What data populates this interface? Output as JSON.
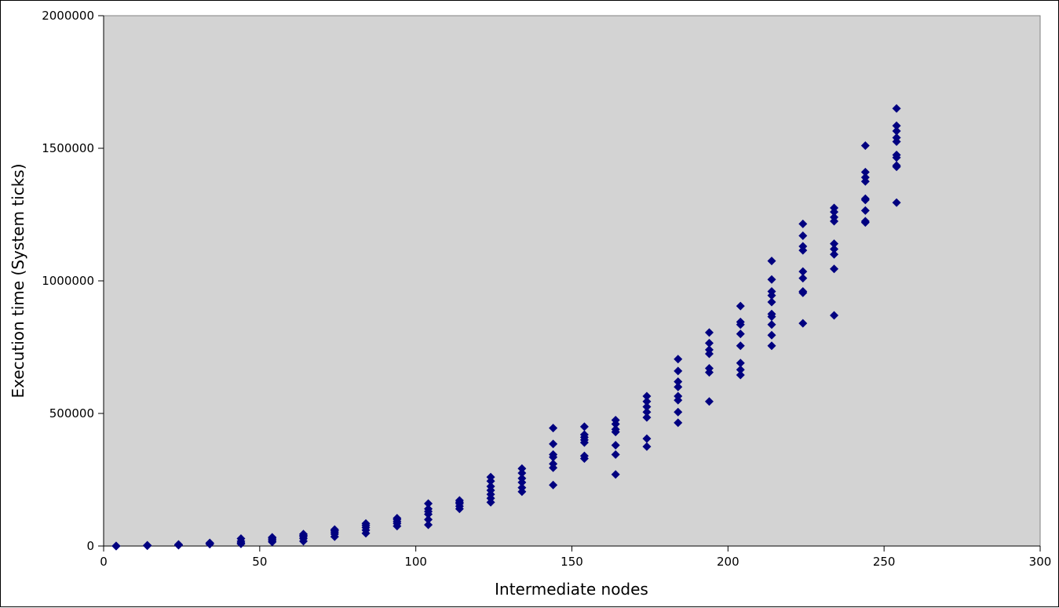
{
  "chart_data": {
    "type": "scatter",
    "title": "",
    "xlabel": "Intermediate nodes",
    "ylabel": "Execution time (System ticks)",
    "xlim": [
      0,
      300
    ],
    "ylim": [
      0,
      2000000
    ],
    "x_ticks": [
      0,
      50,
      100,
      150,
      200,
      250,
      300
    ],
    "y_ticks": [
      0,
      500000,
      1000000,
      1500000,
      2000000
    ],
    "x_tick_labels": [
      "0",
      "50",
      "100",
      "150",
      "200",
      "250",
      "300"
    ],
    "y_tick_labels": [
      "0",
      "500000",
      "1000000",
      "1500000",
      "2000000"
    ],
    "grid": false,
    "legend": "none",
    "colors": {
      "marker": "#000080",
      "plot_background": "#d3d3d3",
      "axes": "#808080"
    },
    "series": [
      {
        "marker": "diamond",
        "points": [
          [
            4,
            0
          ],
          [
            4,
            0
          ],
          [
            4,
            0
          ],
          [
            4,
            0
          ],
          [
            4,
            0
          ],
          [
            14,
            1000
          ],
          [
            14,
            2000
          ],
          [
            14,
            3000
          ],
          [
            14,
            2000
          ],
          [
            24,
            3000
          ],
          [
            24,
            5000
          ],
          [
            24,
            6000
          ],
          [
            24,
            4000
          ],
          [
            34,
            7000
          ],
          [
            34,
            9000
          ],
          [
            34,
            12000
          ],
          [
            34,
            10000
          ],
          [
            44,
            8000
          ],
          [
            44,
            12000
          ],
          [
            44,
            18000
          ],
          [
            44,
            28000
          ],
          [
            54,
            15000
          ],
          [
            54,
            20000
          ],
          [
            54,
            25000
          ],
          [
            54,
            30000
          ],
          [
            54,
            33000
          ],
          [
            64,
            18000
          ],
          [
            64,
            28000
          ],
          [
            64,
            35000
          ],
          [
            64,
            40000
          ],
          [
            64,
            45000
          ],
          [
            74,
            35000
          ],
          [
            74,
            45000
          ],
          [
            74,
            52000
          ],
          [
            74,
            58000
          ],
          [
            74,
            62000
          ],
          [
            84,
            48000
          ],
          [
            84,
            60000
          ],
          [
            84,
            70000
          ],
          [
            84,
            78000
          ],
          [
            84,
            85000
          ],
          [
            94,
            75000
          ],
          [
            94,
            85000
          ],
          [
            94,
            92000
          ],
          [
            94,
            100000
          ],
          [
            94,
            105000
          ],
          [
            104,
            80000
          ],
          [
            104,
            100000
          ],
          [
            104,
            120000
          ],
          [
            104,
            130000
          ],
          [
            104,
            140000
          ],
          [
            104,
            160000
          ],
          [
            114,
            140000
          ],
          [
            114,
            150000
          ],
          [
            114,
            160000
          ],
          [
            114,
            165000
          ],
          [
            114,
            172000
          ],
          [
            124,
            165000
          ],
          [
            124,
            180000
          ],
          [
            124,
            195000
          ],
          [
            124,
            210000
          ],
          [
            124,
            225000
          ],
          [
            124,
            245000
          ],
          [
            124,
            260000
          ],
          [
            134,
            205000
          ],
          [
            134,
            220000
          ],
          [
            134,
            240000
          ],
          [
            134,
            255000
          ],
          [
            134,
            275000
          ],
          [
            134,
            292000
          ],
          [
            144,
            230000
          ],
          [
            144,
            295000
          ],
          [
            144,
            310000
          ],
          [
            144,
            335000
          ],
          [
            144,
            345000
          ],
          [
            144,
            385000
          ],
          [
            144,
            445000
          ],
          [
            154,
            330000
          ],
          [
            154,
            340000
          ],
          [
            154,
            390000
          ],
          [
            154,
            400000
          ],
          [
            154,
            410000
          ],
          [
            154,
            420000
          ],
          [
            154,
            450000
          ],
          [
            164,
            270000
          ],
          [
            164,
            345000
          ],
          [
            164,
            380000
          ],
          [
            164,
            430000
          ],
          [
            164,
            440000
          ],
          [
            164,
            460000
          ],
          [
            164,
            475000
          ],
          [
            174,
            375000
          ],
          [
            174,
            405000
          ],
          [
            174,
            485000
          ],
          [
            174,
            505000
          ],
          [
            174,
            525000
          ],
          [
            174,
            545000
          ],
          [
            174,
            565000
          ],
          [
            184,
            465000
          ],
          [
            184,
            505000
          ],
          [
            184,
            550000
          ],
          [
            184,
            565000
          ],
          [
            184,
            600000
          ],
          [
            184,
            620000
          ],
          [
            184,
            660000
          ],
          [
            184,
            705000
          ],
          [
            194,
            545000
          ],
          [
            194,
            655000
          ],
          [
            194,
            670000
          ],
          [
            194,
            725000
          ],
          [
            194,
            740000
          ],
          [
            194,
            765000
          ],
          [
            194,
            805000
          ],
          [
            204,
            645000
          ],
          [
            204,
            665000
          ],
          [
            204,
            690000
          ],
          [
            204,
            755000
          ],
          [
            204,
            800000
          ],
          [
            204,
            835000
          ],
          [
            204,
            845000
          ],
          [
            204,
            905000
          ],
          [
            214,
            755000
          ],
          [
            214,
            795000
          ],
          [
            214,
            835000
          ],
          [
            214,
            865000
          ],
          [
            214,
            875000
          ],
          [
            214,
            920000
          ],
          [
            214,
            945000
          ],
          [
            214,
            960000
          ],
          [
            214,
            1005000
          ],
          [
            214,
            1075000
          ],
          [
            224,
            840000
          ],
          [
            224,
            955000
          ],
          [
            224,
            960000
          ],
          [
            224,
            1010000
          ],
          [
            224,
            1035000
          ],
          [
            224,
            1115000
          ],
          [
            224,
            1130000
          ],
          [
            224,
            1170000
          ],
          [
            224,
            1215000
          ],
          [
            234,
            870000
          ],
          [
            234,
            1045000
          ],
          [
            234,
            1100000
          ],
          [
            234,
            1120000
          ],
          [
            234,
            1140000
          ],
          [
            234,
            1225000
          ],
          [
            234,
            1240000
          ],
          [
            234,
            1260000
          ],
          [
            234,
            1275000
          ],
          [
            244,
            1220000
          ],
          [
            244,
            1225000
          ],
          [
            244,
            1265000
          ],
          [
            244,
            1305000
          ],
          [
            244,
            1310000
          ],
          [
            244,
            1375000
          ],
          [
            244,
            1390000
          ],
          [
            244,
            1410000
          ],
          [
            244,
            1510000
          ],
          [
            254,
            1295000
          ],
          [
            254,
            1430000
          ],
          [
            254,
            1435000
          ],
          [
            254,
            1465000
          ],
          [
            254,
            1475000
          ],
          [
            254,
            1525000
          ],
          [
            254,
            1540000
          ],
          [
            254,
            1565000
          ],
          [
            254,
            1585000
          ],
          [
            254,
            1650000
          ]
        ]
      }
    ]
  }
}
